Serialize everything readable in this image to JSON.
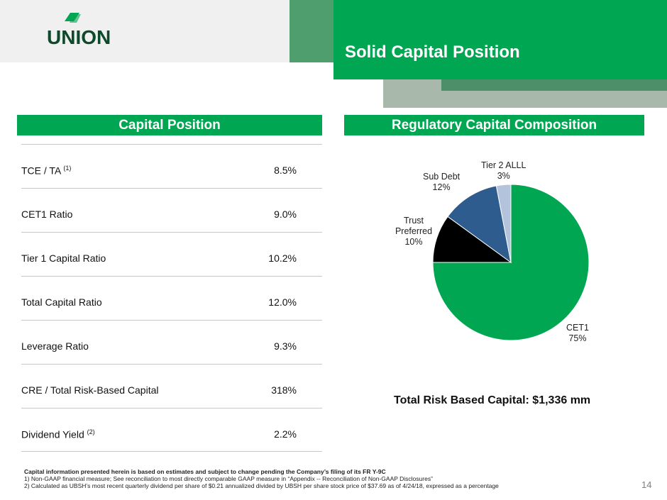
{
  "brand": {
    "logo_text": "UNION",
    "accent": "#00a651"
  },
  "header": {
    "title": "Solid Capital Position"
  },
  "capital_position": {
    "heading": "Capital Position",
    "rows": [
      {
        "label": "TCE / TA",
        "note": "(1)",
        "value": "8.5%"
      },
      {
        "label": "CET1 Ratio",
        "note": "",
        "value": "9.0%"
      },
      {
        "label": "Tier 1 Capital Ratio",
        "note": "",
        "value": "10.2%"
      },
      {
        "label": "Total Capital Ratio",
        "note": "",
        "value": "12.0%"
      },
      {
        "label": "Leverage Ratio",
        "note": "",
        "value": "9.3%"
      },
      {
        "label": "CRE / Total Risk-Based Capital",
        "note": "",
        "value": "318%"
      },
      {
        "label": "Dividend Yield",
        "note": "(2)",
        "value": "2.2%"
      }
    ]
  },
  "composition": {
    "heading": "Regulatory Capital Composition",
    "total": "Total Risk Based Capital: $1,336 mm"
  },
  "chart_data": {
    "type": "pie",
    "title": "Regulatory Capital Composition",
    "slices": [
      {
        "label": "CET1",
        "value": 75,
        "display": "75%",
        "color": "#00a651"
      },
      {
        "label": "Trust Preferred",
        "value": 10,
        "display": "10%",
        "color": "#000000"
      },
      {
        "label": "Sub Debt",
        "value": 12,
        "display": "12%",
        "color": "#2f5c8f"
      },
      {
        "label": "Tier 2 ALLL",
        "value": 3,
        "display": "3%",
        "color": "#b4c3dc"
      }
    ]
  },
  "footer": {
    "line0": "Capital information presented herein is based on estimates and subject to change pending the Company’s filing of its FR Y-9C",
    "line1": "1) Non-GAAP financial measure; See reconciliation to most directly comparable GAAP measure in “Appendix -- Reconciliation of Non-GAAP Disclosures”",
    "line2": "2) Calculated as UBSH’s most recent quarterly dividend per share of $0.21 annualized divided by UBSH per share stock price of $37.69 as of 4/24/18, expressed as a percentage",
    "page": "14"
  }
}
